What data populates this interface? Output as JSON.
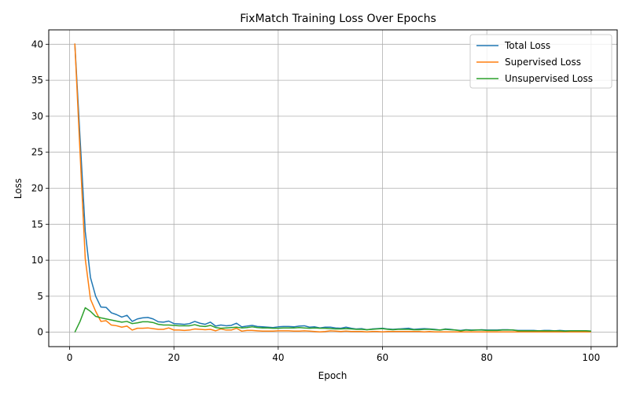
{
  "chart_data": {
    "type": "line",
    "title": "FixMatch Training Loss Over Epochs",
    "xlabel": "Epoch",
    "ylabel": "Loss",
    "xlim": [
      -4,
      105
    ],
    "ylim": [
      -2,
      42
    ],
    "xticks": [
      0,
      20,
      40,
      60,
      80,
      100
    ],
    "yticks": [
      0,
      5,
      10,
      15,
      20,
      25,
      30,
      35,
      40
    ],
    "grid": true,
    "legend_position": "top-right",
    "series": [
      {
        "name": "Total Loss",
        "color": "#1f77b4",
        "x": [
          1,
          2,
          3,
          4,
          5,
          6,
          7,
          8,
          9,
          10,
          11,
          12,
          13,
          14,
          15,
          16,
          17,
          18,
          19,
          20,
          21,
          22,
          23,
          24,
          25,
          26,
          27,
          28,
          29,
          30,
          31,
          32,
          33,
          34,
          35,
          36,
          37,
          38,
          39,
          40,
          41,
          42,
          43,
          44,
          45,
          46,
          47,
          48,
          49,
          50,
          51,
          52,
          53,
          54,
          55,
          56,
          57,
          58,
          59,
          60,
          61,
          62,
          63,
          64,
          65,
          66,
          67,
          68,
          69,
          70,
          71,
          72,
          73,
          74,
          75,
          76,
          77,
          78,
          79,
          80,
          81,
          82,
          83,
          84,
          85,
          86,
          87,
          88,
          89,
          90,
          91,
          92,
          93,
          94,
          95,
          96,
          97,
          98,
          99,
          100
        ],
        "values": [
          40.1,
          27.0,
          14.0,
          7.6,
          5.0,
          3.5,
          3.45,
          2.7,
          2.45,
          2.1,
          2.35,
          1.5,
          1.85,
          2.0,
          2.05,
          1.85,
          1.45,
          1.4,
          1.55,
          1.2,
          1.15,
          1.1,
          1.2,
          1.5,
          1.25,
          1.1,
          1.4,
          0.85,
          1.0,
          0.9,
          0.95,
          1.25,
          0.75,
          0.85,
          0.95,
          0.8,
          0.75,
          0.7,
          0.65,
          0.75,
          0.8,
          0.8,
          0.75,
          0.85,
          0.9,
          0.7,
          0.75,
          0.6,
          0.7,
          0.7,
          0.6,
          0.55,
          0.7,
          0.55,
          0.45,
          0.5,
          0.35,
          0.45,
          0.5,
          0.55,
          0.45,
          0.4,
          0.45,
          0.5,
          0.55,
          0.4,
          0.45,
          0.5,
          0.45,
          0.4,
          0.3,
          0.45,
          0.4,
          0.3,
          0.25,
          0.35,
          0.3,
          0.3,
          0.35,
          0.3,
          0.3,
          0.3,
          0.35,
          0.35,
          0.3,
          0.25,
          0.25,
          0.25,
          0.25,
          0.2,
          0.25,
          0.25,
          0.2,
          0.25,
          0.2,
          0.2,
          0.2,
          0.2,
          0.2,
          0.15
        ]
      },
      {
        "name": "Supervised Loss",
        "color": "#ff7f0e",
        "x": [
          1,
          2,
          3,
          4,
          5,
          6,
          7,
          8,
          9,
          10,
          11,
          12,
          13,
          14,
          15,
          16,
          17,
          18,
          19,
          20,
          21,
          22,
          23,
          24,
          25,
          26,
          27,
          28,
          29,
          30,
          31,
          32,
          33,
          34,
          35,
          36,
          37,
          38,
          39,
          40,
          41,
          42,
          43,
          44,
          45,
          46,
          47,
          48,
          49,
          50,
          51,
          52,
          53,
          54,
          55,
          56,
          57,
          58,
          59,
          60,
          61,
          62,
          63,
          64,
          65,
          66,
          67,
          68,
          69,
          70,
          71,
          72,
          73,
          74,
          75,
          76,
          77,
          78,
          79,
          80,
          81,
          82,
          83,
          84,
          85,
          86,
          87,
          88,
          89,
          90,
          91,
          92,
          93,
          94,
          95,
          96,
          97,
          98,
          99,
          100
        ],
        "values": [
          40.1,
          25.0,
          10.2,
          4.6,
          2.9,
          1.5,
          1.6,
          1.0,
          0.9,
          0.7,
          0.85,
          0.3,
          0.55,
          0.55,
          0.6,
          0.5,
          0.4,
          0.4,
          0.6,
          0.3,
          0.3,
          0.25,
          0.3,
          0.45,
          0.4,
          0.35,
          0.4,
          0.2,
          0.45,
          0.3,
          0.3,
          0.55,
          0.15,
          0.25,
          0.25,
          0.2,
          0.15,
          0.15,
          0.15,
          0.2,
          0.2,
          0.2,
          0.15,
          0.15,
          0.2,
          0.15,
          0.1,
          0.05,
          0.1,
          0.2,
          0.15,
          0.1,
          0.15,
          0.1,
          0.1,
          0.1,
          0.05,
          0.1,
          0.1,
          0.05,
          0.1,
          0.1,
          0.1,
          0.1,
          0.1,
          0.1,
          0.1,
          0.05,
          0.1,
          0.05,
          0.05,
          0.05,
          0.05,
          0.05,
          0.05,
          0.05,
          0.05,
          0.05,
          0.05,
          0.05,
          0.05,
          0.05,
          0.05,
          0.05,
          0.05,
          0.05,
          0.05,
          0.05,
          0.05,
          0.05,
          0.05,
          0.05,
          0.05,
          0.05,
          0.05,
          0.05,
          0.05,
          0.05,
          0.05,
          0.05
        ]
      },
      {
        "name": "Unsupervised Loss",
        "color": "#2ca02c",
        "x": [
          1,
          2,
          3,
          4,
          5,
          6,
          7,
          8,
          9,
          10,
          11,
          12,
          13,
          14,
          15,
          16,
          17,
          18,
          19,
          20,
          21,
          22,
          23,
          24,
          25,
          26,
          27,
          28,
          29,
          30,
          31,
          32,
          33,
          34,
          35,
          36,
          37,
          38,
          39,
          40,
          41,
          42,
          43,
          44,
          45,
          46,
          47,
          48,
          49,
          50,
          51,
          52,
          53,
          54,
          55,
          56,
          57,
          58,
          59,
          60,
          61,
          62,
          63,
          64,
          65,
          66,
          67,
          68,
          69,
          70,
          71,
          72,
          73,
          74,
          75,
          76,
          77,
          78,
          79,
          80,
          81,
          82,
          83,
          84,
          85,
          86,
          87,
          88,
          89,
          90,
          91,
          92,
          93,
          94,
          95,
          96,
          97,
          98,
          99,
          100
        ],
        "values": [
          0.0,
          1.5,
          3.4,
          2.9,
          2.2,
          2.0,
          1.85,
          1.7,
          1.55,
          1.4,
          1.5,
          1.2,
          1.3,
          1.45,
          1.45,
          1.35,
          1.1,
          1.0,
          1.0,
          0.95,
          0.9,
          0.9,
          0.9,
          1.05,
          0.85,
          0.8,
          0.95,
          0.65,
          0.55,
          0.6,
          0.65,
          0.7,
          0.6,
          0.65,
          0.75,
          0.65,
          0.6,
          0.6,
          0.55,
          0.55,
          0.6,
          0.6,
          0.6,
          0.65,
          0.6,
          0.55,
          0.6,
          0.55,
          0.55,
          0.5,
          0.45,
          0.45,
          0.5,
          0.45,
          0.4,
          0.4,
          0.35,
          0.4,
          0.45,
          0.5,
          0.4,
          0.35,
          0.4,
          0.4,
          0.4,
          0.35,
          0.35,
          0.4,
          0.4,
          0.35,
          0.3,
          0.4,
          0.35,
          0.3,
          0.2,
          0.3,
          0.25,
          0.3,
          0.3,
          0.25,
          0.25,
          0.25,
          0.3,
          0.3,
          0.3,
          0.2,
          0.2,
          0.2,
          0.2,
          0.2,
          0.2,
          0.2,
          0.2,
          0.2,
          0.15,
          0.2,
          0.2,
          0.2,
          0.2,
          0.15
        ]
      }
    ]
  }
}
